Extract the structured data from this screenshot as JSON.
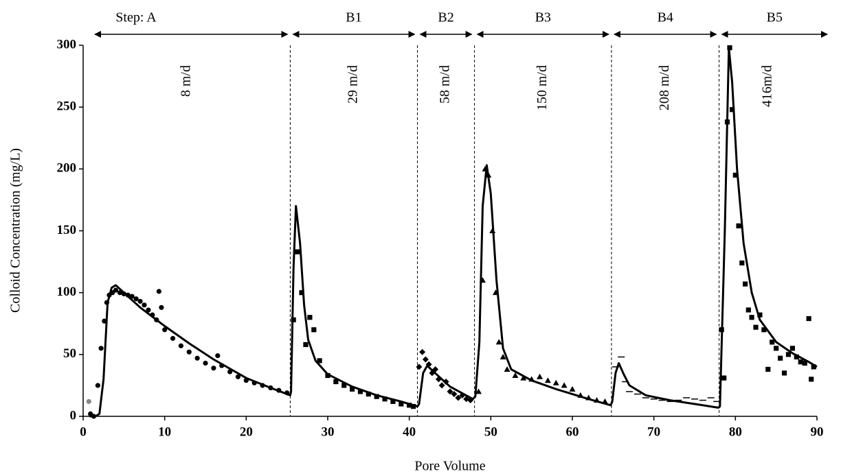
{
  "chart_data": {
    "type": "scatter",
    "x_label": "Pore Volume",
    "y_label": "Colloid  Concentration (mg/L)",
    "xlim": [
      0,
      90
    ],
    "xticks": [
      0,
      10,
      20,
      30,
      40,
      50,
      60,
      70,
      80,
      90
    ],
    "ylim": [
      0,
      300
    ],
    "yticks": [
      0,
      50,
      100,
      150,
      200,
      250,
      300
    ],
    "boundaries": [
      25.4,
      41,
      48,
      64.8,
      78
    ],
    "steps": [
      {
        "label": "Step: A",
        "rate": "8 m/d"
      },
      {
        "label": "B1",
        "rate": "29 m/d"
      },
      {
        "label": "B2",
        "rate": "58  m/d"
      },
      {
        "label": "B3",
        "rate": "150 m/d"
      },
      {
        "label": "B4",
        "rate": "208 m/d"
      },
      {
        "label": "B5",
        "rate": "416m/d"
      }
    ],
    "series": [
      {
        "marker": "circle",
        "color": "#888888",
        "x": [
          0.7
        ],
        "values": [
          12
        ]
      },
      {
        "marker": "circle",
        "color": "#000000",
        "x": [
          0.9,
          1.3,
          1.8,
          2.2,
          2.6,
          2.9,
          3.2,
          3.6,
          4,
          4.5,
          5,
          5.5,
          6,
          6.5,
          7,
          7.5,
          8,
          8.5,
          9,
          9.3,
          9.6,
          10,
          11,
          12,
          13,
          14,
          15,
          16,
          16.5,
          17,
          18,
          19,
          20,
          21,
          22,
          23,
          24,
          25
        ],
        "values": [
          2,
          0,
          25,
          55,
          77,
          92,
          98,
          100,
          102,
          100,
          99,
          98,
          97,
          95,
          93,
          90,
          86,
          82,
          78,
          101,
          88,
          70,
          63,
          57,
          52,
          47,
          43,
          39,
          49,
          41,
          36,
          32,
          29,
          27,
          25,
          23,
          21,
          19
        ]
      },
      {
        "marker": "square",
        "color": "#000000",
        "x": [
          25.8,
          26.3,
          26.8,
          27.3,
          27.8,
          28.3,
          29,
          30,
          31,
          32,
          33,
          34,
          35,
          36,
          37,
          38,
          39,
          40,
          40.5
        ],
        "values": [
          78,
          133,
          100,
          58,
          80,
          70,
          45,
          33,
          28,
          25,
          22,
          20,
          18,
          16,
          14,
          12,
          10,
          9,
          8
        ]
      },
      {
        "marker": "diamond",
        "color": "#000000",
        "x": [
          41.2,
          41.6,
          42,
          42.4,
          42.8,
          43.2,
          43.6,
          44,
          44.5,
          45,
          45.5,
          46,
          46.5,
          47,
          47.5
        ],
        "values": [
          40,
          52,
          46,
          42,
          35,
          38,
          30,
          25,
          28,
          20,
          18,
          15,
          17,
          14,
          13
        ]
      },
      {
        "marker": "triangle",
        "color": "#000000",
        "x": [
          48.5,
          49,
          49.3,
          49.7,
          50.2,
          50.6,
          51,
          51.5,
          52,
          53,
          54,
          55,
          56,
          57,
          58,
          59,
          60,
          61,
          62,
          63,
          64
        ],
        "values": [
          20,
          110,
          200,
          195,
          150,
          100,
          60,
          48,
          38,
          33,
          31,
          30,
          32,
          29,
          27,
          25,
          22,
          17,
          15,
          13,
          12
        ]
      },
      {
        "marker": "dash",
        "color": "#000000",
        "x": [
          65.3,
          66,
          66.5,
          67,
          68,
          69,
          70,
          71,
          72,
          73,
          74,
          75,
          76,
          77,
          77.7
        ],
        "values": [
          40,
          48,
          28,
          20,
          18,
          15,
          14,
          13,
          12,
          13,
          15,
          14,
          13,
          15,
          12
        ]
      },
      {
        "marker": "square",
        "color": "#000000",
        "x": [
          78.3,
          78.6,
          79,
          79.3,
          79.6,
          80,
          80.4,
          80.8,
          81.2,
          81.6,
          82,
          82.5,
          83,
          83.5,
          84,
          84.5,
          85,
          85.5,
          86,
          86.5,
          87,
          87.5,
          88,
          88.5,
          89,
          89.3,
          89.6
        ],
        "values": [
          70,
          31,
          238,
          298,
          248,
          195,
          154,
          124,
          107,
          86,
          80,
          72,
          82,
          70,
          38,
          60,
          55,
          47,
          35,
          50,
          55,
          48,
          44,
          43,
          79,
          30,
          40
        ]
      },
      {
        "marker": "line",
        "color": "#000000",
        "x": [
          0.8,
          1.5,
          2,
          2.5,
          3,
          3.5,
          4,
          5,
          7,
          10,
          13,
          16,
          20,
          23,
          25.4,
          25.5,
          25.8,
          26.1,
          26.6,
          27.1,
          27.6,
          28.5,
          30,
          33,
          36,
          39,
          41,
          41.2,
          41.7,
          42.2,
          43,
          45,
          47.8,
          48.1,
          48.6,
          49,
          49.5,
          50,
          50.7,
          51.5,
          52.5,
          55,
          58,
          62,
          64.7,
          64.9,
          65.3,
          65.7,
          66.3,
          67,
          69,
          72,
          75,
          77.9,
          78.1,
          78.7,
          79.2,
          79.6,
          80.2,
          81,
          82,
          83,
          85,
          87,
          89,
          90
        ],
        "values": [
          0,
          0,
          2,
          30,
          92,
          104,
          106,
          100,
          88,
          73,
          59,
          46,
          31,
          23,
          17,
          20,
          120,
          170,
          140,
          90,
          62,
          45,
          34,
          24,
          17,
          12,
          8,
          10,
          35,
          41,
          36,
          24,
          14,
          16,
          60,
          170,
          203,
          180,
          110,
          55,
          38,
          29,
          22,
          14,
          9,
          12,
          35,
          43,
          34,
          25,
          17,
          13,
          10,
          7,
          8,
          150,
          298,
          270,
          200,
          140,
          100,
          78,
          60,
          51,
          44,
          40
        ]
      }
    ]
  }
}
